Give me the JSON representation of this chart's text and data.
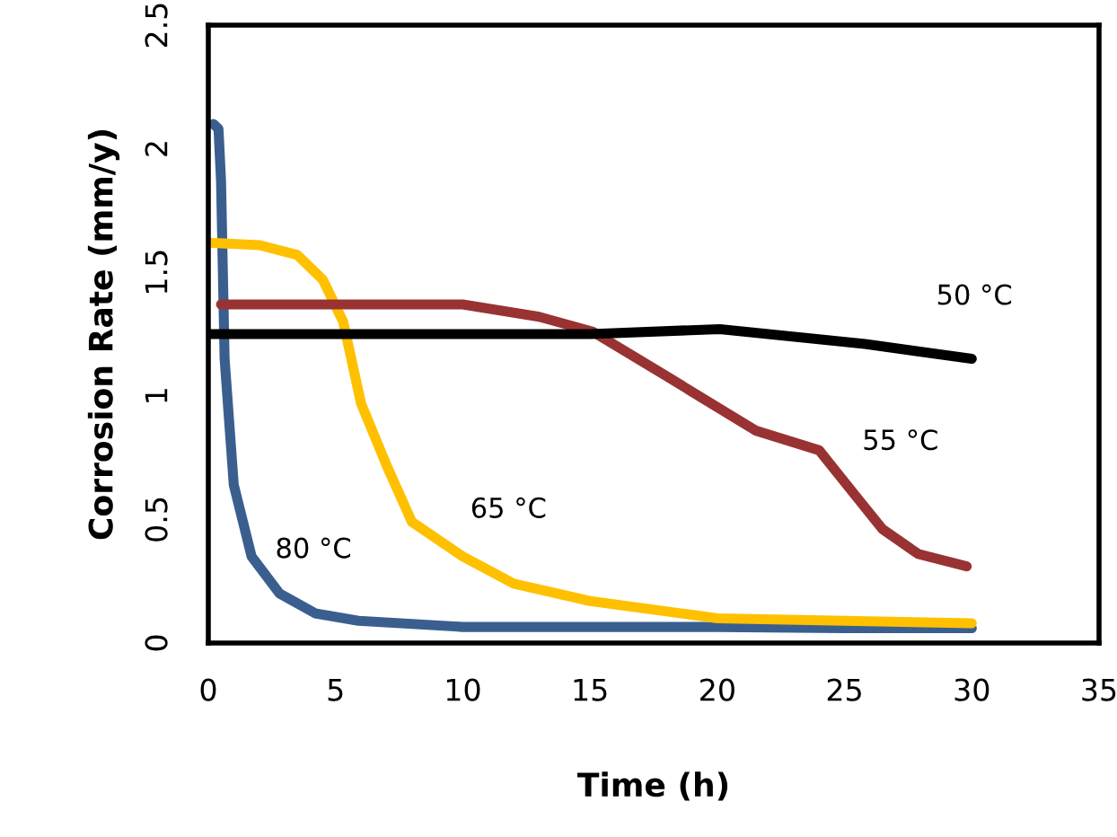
{
  "chart_data": {
    "type": "line",
    "xlabel": "Time (h)",
    "ylabel": "Corrosion Rate (mm/y)",
    "xlim": [
      0,
      35
    ],
    "xticks": [
      0,
      5,
      10,
      15,
      20,
      25,
      30,
      35
    ],
    "ylim": [
      0,
      2.5
    ],
    "yticks": [
      0,
      0.5,
      1,
      1.5,
      2,
      2.5
    ],
    "grid": false,
    "marker": "none",
    "line_style": "solid",
    "series": [
      {
        "name": "80 °C",
        "color": "#3a5f8f",
        "x": [
          0.2,
          0.4,
          0.5,
          0.57,
          0.64,
          1.0,
          1.7,
          2.8,
          4.2,
          5.9,
          10,
          15,
          20,
          25,
          30
        ],
        "values": [
          2.1,
          2.08,
          1.87,
          1.51,
          1.15,
          0.64,
          0.35,
          0.2,
          0.12,
          0.09,
          0.065,
          0.065,
          0.065,
          0.06,
          0.06
        ]
      },
      {
        "name": "65 °C",
        "color": "#ffc000",
        "x": [
          0,
          2,
          3.5,
          4.5,
          5.3,
          6,
          7,
          8,
          10,
          12,
          15,
          20,
          25,
          30
        ],
        "values": [
          1.62,
          1.61,
          1.57,
          1.47,
          1.3,
          0.97,
          0.72,
          0.49,
          0.35,
          0.24,
          0.17,
          0.1,
          0.09,
          0.08
        ]
      },
      {
        "name": "55 °C",
        "color": "#993333",
        "x": [
          0.5,
          5,
          10,
          13,
          15.1,
          18,
          21.5,
          24,
          25.4,
          26.5,
          27.9,
          29.8
        ],
        "values": [
          1.37,
          1.37,
          1.37,
          1.32,
          1.26,
          1.08,
          0.86,
          0.78,
          0.6,
          0.46,
          0.36,
          0.31
        ]
      },
      {
        "name": "50 °C",
        "color": "#000000",
        "x": [
          0,
          5,
          10,
          15,
          20.1,
          25.8,
          30
        ],
        "values": [
          1.25,
          1.25,
          1.25,
          1.25,
          1.27,
          1.21,
          1.15
        ]
      }
    ]
  }
}
